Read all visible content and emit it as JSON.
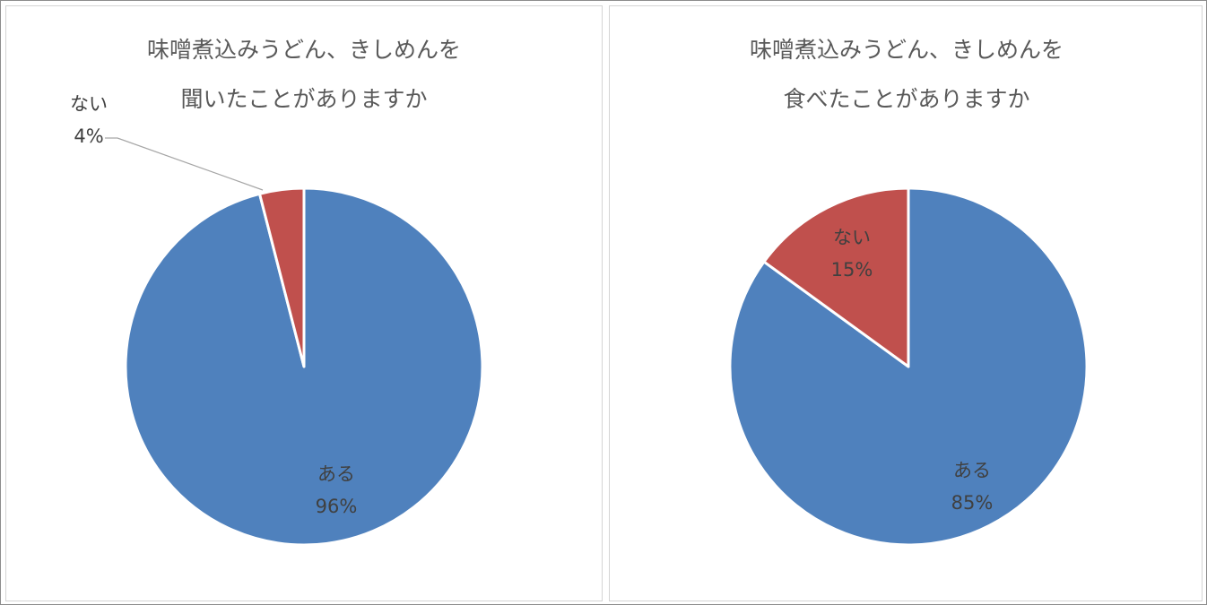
{
  "chart_data": [
    {
      "type": "pie",
      "title_lines": [
        "味噌煮込みうどん、きしめんを",
        "聞いたことがありますか"
      ],
      "slices": [
        {
          "label": "ある",
          "percent_text": "96%",
          "value": 96,
          "color": "#4f81bd"
        },
        {
          "label": "ない",
          "percent_text": "4%",
          "value": 4,
          "color": "#c0504d"
        }
      ]
    },
    {
      "type": "pie",
      "title_lines": [
        "味噌煮込みうどん、きしめんを",
        "食べたことがありますか"
      ],
      "slices": [
        {
          "label": "ある",
          "percent_text": "85%",
          "value": 85,
          "color": "#4f81bd"
        },
        {
          "label": "ない",
          "percent_text": "15%",
          "value": 15,
          "color": "#c0504d"
        }
      ]
    }
  ]
}
